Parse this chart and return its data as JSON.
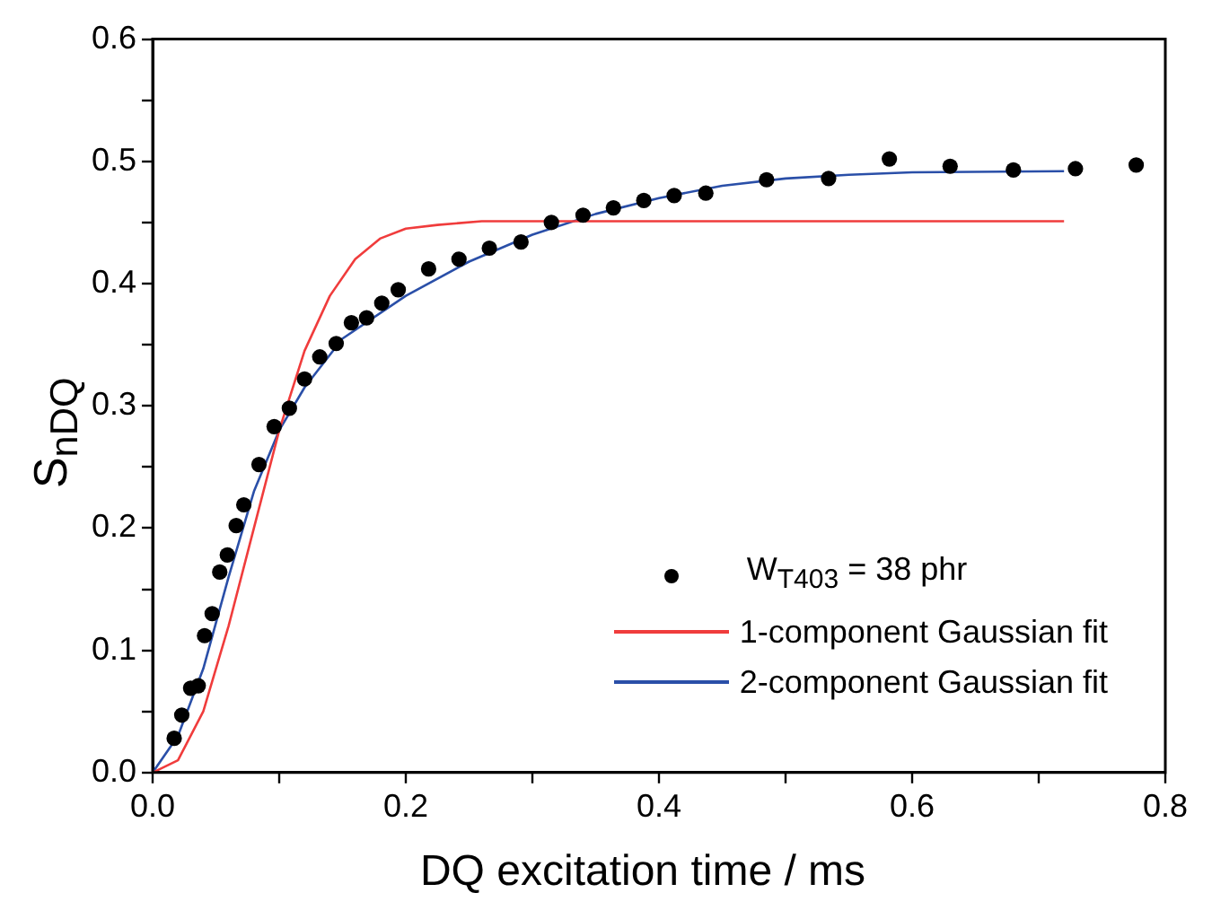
{
  "chart_data": {
    "type": "scatter",
    "xlabel": "DQ excitation time / ms",
    "ylabel": "S$_{nDQ}$",
    "xlim": [
      0,
      0.8
    ],
    "ylim": [
      0,
      0.6
    ],
    "xticks": [
      {
        "value": 0,
        "label": "0.0"
      },
      {
        "value": 0.1,
        "label": null
      },
      0.2,
      {
        "value": 0.3,
        "label": null
      },
      0.4,
      {
        "value": 0.5,
        "label": null
      },
      0.6,
      {
        "value": 0.7,
        "label": null
      },
      0.8
    ],
    "yticks": [
      {
        "value": 0,
        "label": "0.0"
      },
      {
        "value": 0.05,
        "label": null
      },
      0.1,
      {
        "value": 0.15,
        "label": null
      },
      0.2,
      {
        "value": 0.25,
        "label": null
      },
      0.3,
      {
        "value": 0.35,
        "label": null
      },
      0.4,
      {
        "value": 0.45,
        "label": null
      },
      0.5,
      {
        "value": 0.55,
        "label": null
      },
      0.6
    ],
    "grid": false,
    "legend": "bottom right",
    "series": [
      {
        "name": "W$_{T403}$ = 38 phr",
        "type": "scatter",
        "marker": "circle",
        "color": "#000000",
        "x": [
          0.017,
          0.023,
          0.03,
          0.036,
          0.041,
          0.047,
          0.053,
          0.059,
          0.066,
          0.072,
          0.084,
          0.096,
          0.108,
          0.12,
          0.132,
          0.145,
          0.157,
          0.169,
          0.181,
          0.194,
          0.218,
          0.242,
          0.266,
          0.291,
          0.315,
          0.34,
          0.364,
          0.388,
          0.412,
          0.437,
          0.485,
          0.534,
          0.582,
          0.63,
          0.68,
          0.729,
          0.777
        ],
        "values": [
          0.028,
          0.047,
          0.069,
          0.071,
          0.112,
          0.13,
          0.164,
          0.178,
          0.202,
          0.219,
          0.252,
          0.283,
          0.298,
          0.322,
          0.34,
          0.351,
          0.368,
          0.372,
          0.384,
          0.395,
          0.412,
          0.42,
          0.429,
          0.434,
          0.45,
          0.456,
          0.462,
          0.468,
          0.472,
          0.474,
          0.485,
          0.486,
          0.502,
          0.496,
          0.493,
          0.494,
          0.497
        ]
      },
      {
        "name": "1-component Gaussian fit",
        "type": "line",
        "marker": "none",
        "color": "#f03c3c",
        "x": [
          0,
          0.02,
          0.04,
          0.06,
          0.08,
          0.1,
          0.12,
          0.14,
          0.16,
          0.18,
          0.2,
          0.225,
          0.26,
          0.72
        ],
        "values": [
          0,
          0.01,
          0.05,
          0.12,
          0.2,
          0.28,
          0.345,
          0.39,
          0.42,
          0.437,
          0.445,
          0.448,
          0.451,
          0.451
        ]
      },
      {
        "name": "2-component Gaussian fit",
        "type": "line",
        "marker": "none",
        "color": "#2a4fa8",
        "x": [
          0,
          0.02,
          0.04,
          0.06,
          0.08,
          0.1,
          0.12,
          0.15,
          0.2,
          0.25,
          0.3,
          0.35,
          0.4,
          0.45,
          0.5,
          0.55,
          0.6,
          0.72
        ],
        "values": [
          0,
          0.03,
          0.085,
          0.16,
          0.23,
          0.28,
          0.315,
          0.355,
          0.39,
          0.418,
          0.44,
          0.457,
          0.47,
          0.48,
          0.486,
          0.489,
          0.491,
          0.492
        ]
      }
    ]
  }
}
